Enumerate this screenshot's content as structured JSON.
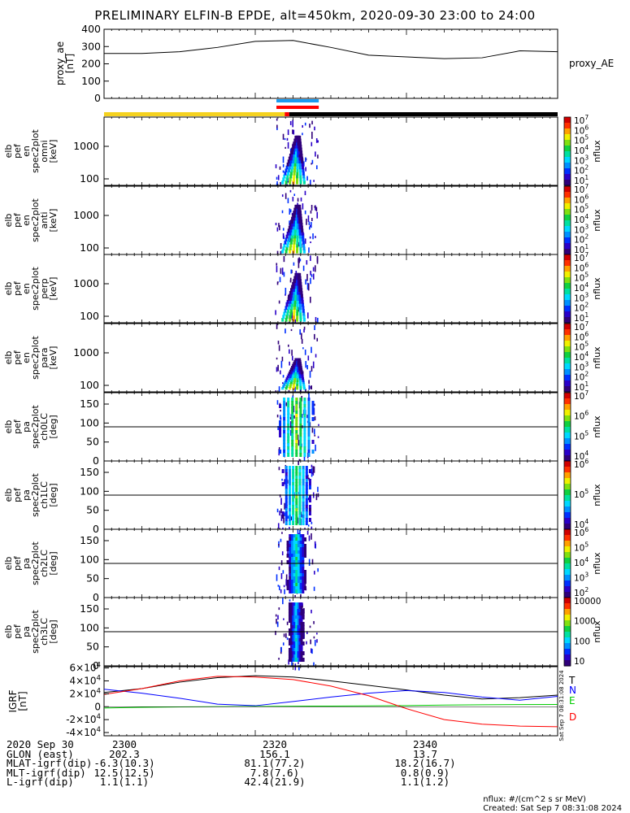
{
  "chart_data": {
    "type": "heatmap",
    "title": "PRELIMINARY ELFIN-B EPDE, alt=450km, 2020-09-30 23:00 to 24:00",
    "x_ticks": [
      "2300",
      "2320",
      "2340"
    ],
    "ae_panel": {
      "ylabel_lines": [
        "proxy_ae",
        "[nT]"
      ],
      "yticks": [
        "0",
        "100",
        "200",
        "300",
        "400"
      ],
      "ylim": [
        0,
        400
      ],
      "legend": "proxy_AE",
      "series": {
        "x_min": [
          0,
          5,
          10,
          15,
          20,
          25,
          30,
          35,
          40,
          45,
          50,
          55,
          60
        ],
        "values": [
          260,
          260,
          270,
          295,
          330,
          335,
          295,
          250,
          240,
          230,
          235,
          275,
          270
        ]
      }
    },
    "bars": {
      "day_night": [
        {
          "from": 0,
          "to": 23.9,
          "color": "#f5d21f"
        },
        {
          "from": 23.9,
          "to": 24.5,
          "color": "#ff0000"
        },
        {
          "from": 24.5,
          "to": 60,
          "color": "#000000"
        }
      ],
      "science_zone": [
        {
          "row": "upper",
          "from": 22.8,
          "to": 28.4,
          "color": "#1a9bf0"
        },
        {
          "row": "lower",
          "from": 22.8,
          "to": 28.4,
          "color": "#ff0000"
        }
      ]
    },
    "energy_panels": [
      {
        "ylabel_lines": [
          "elb",
          "pef",
          "en",
          "spec2plot",
          "omni",
          "[keV]"
        ],
        "yticks": [
          "100",
          "1000"
        ],
        "cbar_ticks": [
          "10^1",
          "10^2",
          "10^3",
          "10^4",
          "10^5",
          "10^6",
          "10^7"
        ],
        "cbar_label": "nflux"
      },
      {
        "ylabel_lines": [
          "elb",
          "pef",
          "en",
          "spec2plot",
          "anti",
          "[keV]"
        ],
        "yticks": [
          "100",
          "1000"
        ],
        "cbar_ticks": [
          "10^1",
          "10^2",
          "10^3",
          "10^4",
          "10^5",
          "10^6",
          "10^7"
        ],
        "cbar_label": "nflux"
      },
      {
        "ylabel_lines": [
          "elb",
          "pef",
          "en",
          "spec2plot",
          "perp",
          "[keV]"
        ],
        "yticks": [
          "100",
          "1000"
        ],
        "cbar_ticks": [
          "10^1",
          "10^2",
          "10^3",
          "10^4",
          "10^5",
          "10^6",
          "10^7"
        ],
        "cbar_label": "nflux"
      },
      {
        "ylabel_lines": [
          "elb",
          "pef",
          "en",
          "spec2plot",
          "para",
          "[keV]"
        ],
        "yticks": [
          "100",
          "1000"
        ],
        "cbar_ticks": [
          "10^1",
          "10^2",
          "10^3",
          "10^4",
          "10^5",
          "10^6",
          "10^7"
        ],
        "cbar_label": "nflux"
      }
    ],
    "pa_panels": [
      {
        "ylabel_lines": [
          "elb",
          "pef",
          "pa",
          "spec2plot",
          "ch0LC",
          "[deg]"
        ],
        "yticks": [
          "0",
          "50",
          "100",
          "150"
        ],
        "cbar_ticks": [
          "10^4",
          "10^5",
          "10^6",
          "10^7"
        ],
        "cbar_label": "nflux"
      },
      {
        "ylabel_lines": [
          "elb",
          "pef",
          "pa",
          "spec2plot",
          "ch1LC",
          "[deg]"
        ],
        "yticks": [
          "0",
          "50",
          "100",
          "150"
        ],
        "cbar_ticks": [
          "10^4",
          "10^5",
          "10^6"
        ],
        "cbar_label": "nflux"
      },
      {
        "ylabel_lines": [
          "elb",
          "pef",
          "pa",
          "spec2plot",
          "ch2LC",
          "[deg]"
        ],
        "yticks": [
          "0",
          "50",
          "100",
          "150"
        ],
        "cbar_ticks": [
          "10^2",
          "10^3",
          "10^4",
          "10^5",
          "10^6"
        ],
        "cbar_label": "nflux"
      },
      {
        "ylabel_lines": [
          "elb",
          "pef",
          "pa",
          "spec2plot",
          "ch3LC",
          "[deg]"
        ],
        "yticks": [
          "0",
          "50",
          "100",
          "150"
        ],
        "cbar_ticks": [
          "10",
          "100",
          "1000",
          "10000"
        ],
        "cbar_label": "nflux"
      }
    ],
    "grf_panel": {
      "ylabel_lines": [
        "IGRF",
        "[nT]"
      ],
      "yticks": [
        "-4×10^4",
        "-2×10^4",
        "0",
        "2×10^4",
        "4×10^4",
        "6×10^4"
      ],
      "ylim": [
        -45000,
        62000
      ],
      "series": [
        {
          "name": "T",
          "color": "#000000",
          "x_min": [
            0,
            5,
            10,
            15,
            20,
            25,
            30,
            35,
            40,
            45,
            50,
            55,
            60
          ],
          "values": [
            22000,
            28000,
            38000,
            45000,
            48000,
            46000,
            40000,
            33000,
            26000,
            18000,
            12000,
            14000,
            18000
          ]
        },
        {
          "name": "N",
          "color": "#0000ff",
          "x_min": [
            0,
            5,
            10,
            15,
            20,
            25,
            30,
            35,
            40,
            45,
            50,
            55,
            60
          ],
          "values": [
            27000,
            21000,
            13000,
            4000,
            1500,
            8000,
            15000,
            21000,
            25000,
            22000,
            15000,
            10000,
            16000
          ]
        },
        {
          "name": "E",
          "color": "#00cc00",
          "x_min": [
            0,
            5,
            10,
            15,
            20,
            25,
            30,
            35,
            40,
            45,
            50,
            55,
            60
          ],
          "values": [
            -2000,
            -1000,
            -300,
            200,
            500,
            800,
            1000,
            1300,
            1800,
            2500,
            3000,
            3300,
            3500
          ]
        },
        {
          "name": "D",
          "color": "#ff0000",
          "x_min": [
            0,
            5,
            10,
            15,
            20,
            25,
            30,
            35,
            40,
            45,
            50,
            55,
            60
          ],
          "values": [
            19000,
            28000,
            40000,
            47000,
            46000,
            42000,
            32000,
            17000,
            -3000,
            -20000,
            -27000,
            -30000,
            -31000
          ]
        }
      ]
    },
    "orbit_table": {
      "rows": [
        {
          "label": "2020 Sep 30",
          "v1": "2300",
          "v2": "2320",
          "v3": "2340"
        },
        {
          "label": "GLON (east)",
          "v1": "202.3",
          "v2": "156.1",
          "v3": "13.7"
        },
        {
          "label": "MLAT-igrf(dip)",
          "v1": "-6.3(10.3)",
          "v2": "81.1(77.2)",
          "v3": "18.2(16.7)"
        },
        {
          "label": "MLT-igrf(dip)",
          "v1": "12.5(12.5)",
          "v2": "7.8(7.6)",
          "v3": "0.8(0.9)"
        },
        {
          "label": "L-igrf(dip)",
          "v1": "1.1(1.1)",
          "v2": "42.4(21.9)",
          "v3": "1.1(1.2)"
        }
      ]
    },
    "side_stamp": "Sat Sep  7 08:31:08 2024",
    "footnote": [
      "nflux: #/(cm^2 s sr MeV)",
      "Created: Sat Sep  7 08:31:08 2024"
    ]
  }
}
